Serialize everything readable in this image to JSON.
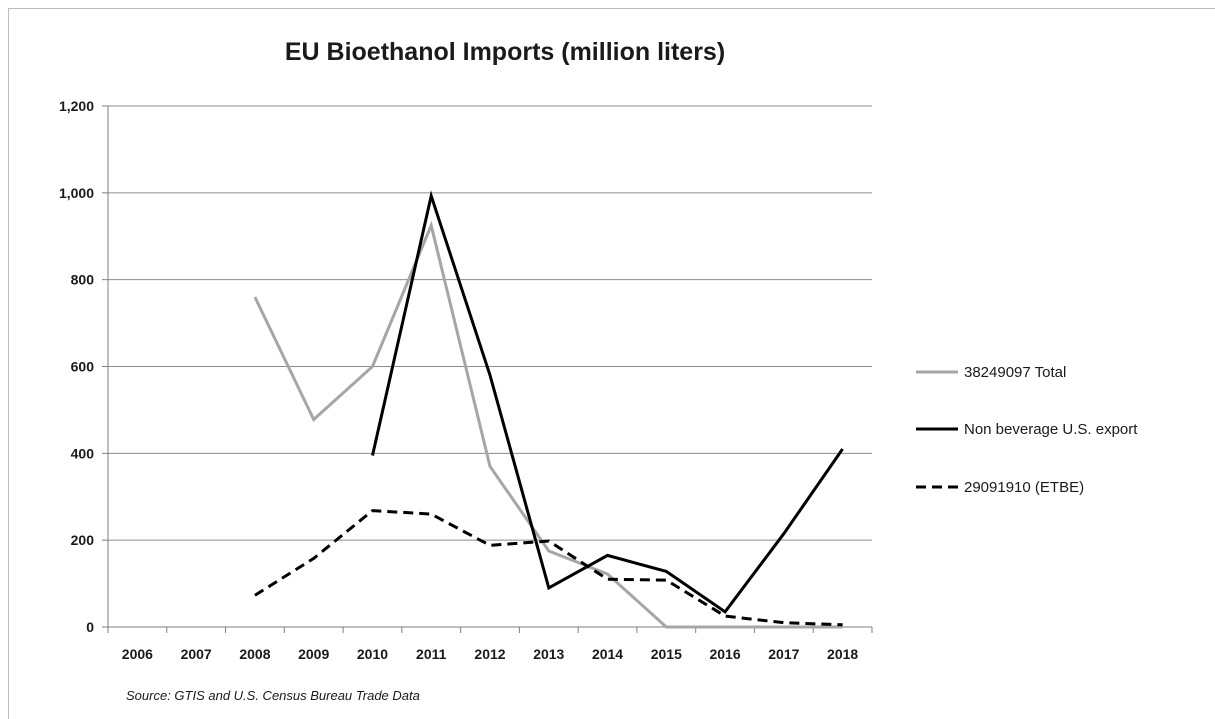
{
  "chart_data": {
    "type": "line",
    "title": "EU Bioethanol Imports (million liters)",
    "xlabel": "",
    "ylabel": "",
    "x": [
      "2006",
      "2007",
      "2008",
      "2009",
      "2010",
      "2011",
      "2012",
      "2013",
      "2014",
      "2015",
      "2016",
      "2017",
      "2018"
    ],
    "ylim": [
      0,
      1200
    ],
    "y_ticks": [
      "0",
      "200",
      "400",
      "600",
      "800",
      "1,000",
      "1,200"
    ],
    "grid": "horizontal",
    "legend_position": "right",
    "series": [
      {
        "name": "38249097 Total",
        "color": "#a6a6a6",
        "dash": "solid",
        "values": [
          null,
          null,
          760,
          478,
          600,
          925,
          370,
          175,
          122,
          0,
          0,
          0,
          0
        ]
      },
      {
        "name": "Non beverage U.S. export",
        "color": "#000000",
        "dash": "solid",
        "values": [
          null,
          null,
          null,
          null,
          395,
          993,
          580,
          90,
          165,
          128,
          35,
          215,
          410
        ]
      },
      {
        "name": "29091910 (ETBE)",
        "color": "#000000",
        "dash": "dashed",
        "values": [
          null,
          null,
          73,
          158,
          268,
          260,
          188,
          198,
          110,
          108,
          25,
          10,
          5
        ]
      }
    ],
    "source": "Source: GTIS and U.S. Census Bureau Trade Data"
  }
}
